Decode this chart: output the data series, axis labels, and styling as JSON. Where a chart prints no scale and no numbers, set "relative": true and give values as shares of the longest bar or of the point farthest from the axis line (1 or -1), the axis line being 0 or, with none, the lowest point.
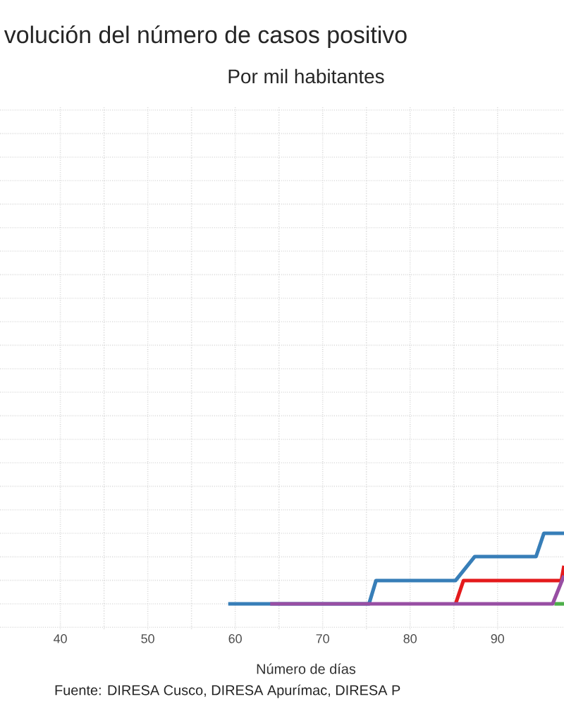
{
  "chart_data": {
    "type": "line",
    "title": "volución del número de casos positivo",
    "subtitle": "Por mil habitantes",
    "xlabel": "Número de días",
    "annotations": [
      "Fuente: DIRESA Cusco, DIRESA Apurímac, DIRESA P"
    ],
    "relative": true,
    "xlim": [
      33.1,
      97.6
    ],
    "xticks": [
      40,
      50,
      60,
      70,
      80,
      90
    ],
    "grid": true,
    "line_style": "solid",
    "marker": "none",
    "series": [
      {
        "color": "#377eb8",
        "x": [
          59.2,
          75.3,
          76.1,
          85.2,
          87.4,
          94.4,
          95.3,
          97.6
        ],
        "values": [
          0,
          0,
          0.33,
          0.33,
          0.67,
          0.67,
          1,
          1
        ]
      },
      {
        "color": "#e41a1c",
        "x": [
          85.2,
          86.1,
          97.3,
          97.6
        ],
        "values": [
          0,
          0.33,
          0.33,
          0.54
        ]
      },
      {
        "color": "#4daf4a",
        "x": [
          96.5,
          97.6
        ],
        "values": [
          0,
          0
        ]
      },
      {
        "color": "#984ea3",
        "x": [
          64,
          96.3,
          97.6
        ],
        "values": [
          0,
          0,
          0.4
        ]
      }
    ]
  }
}
